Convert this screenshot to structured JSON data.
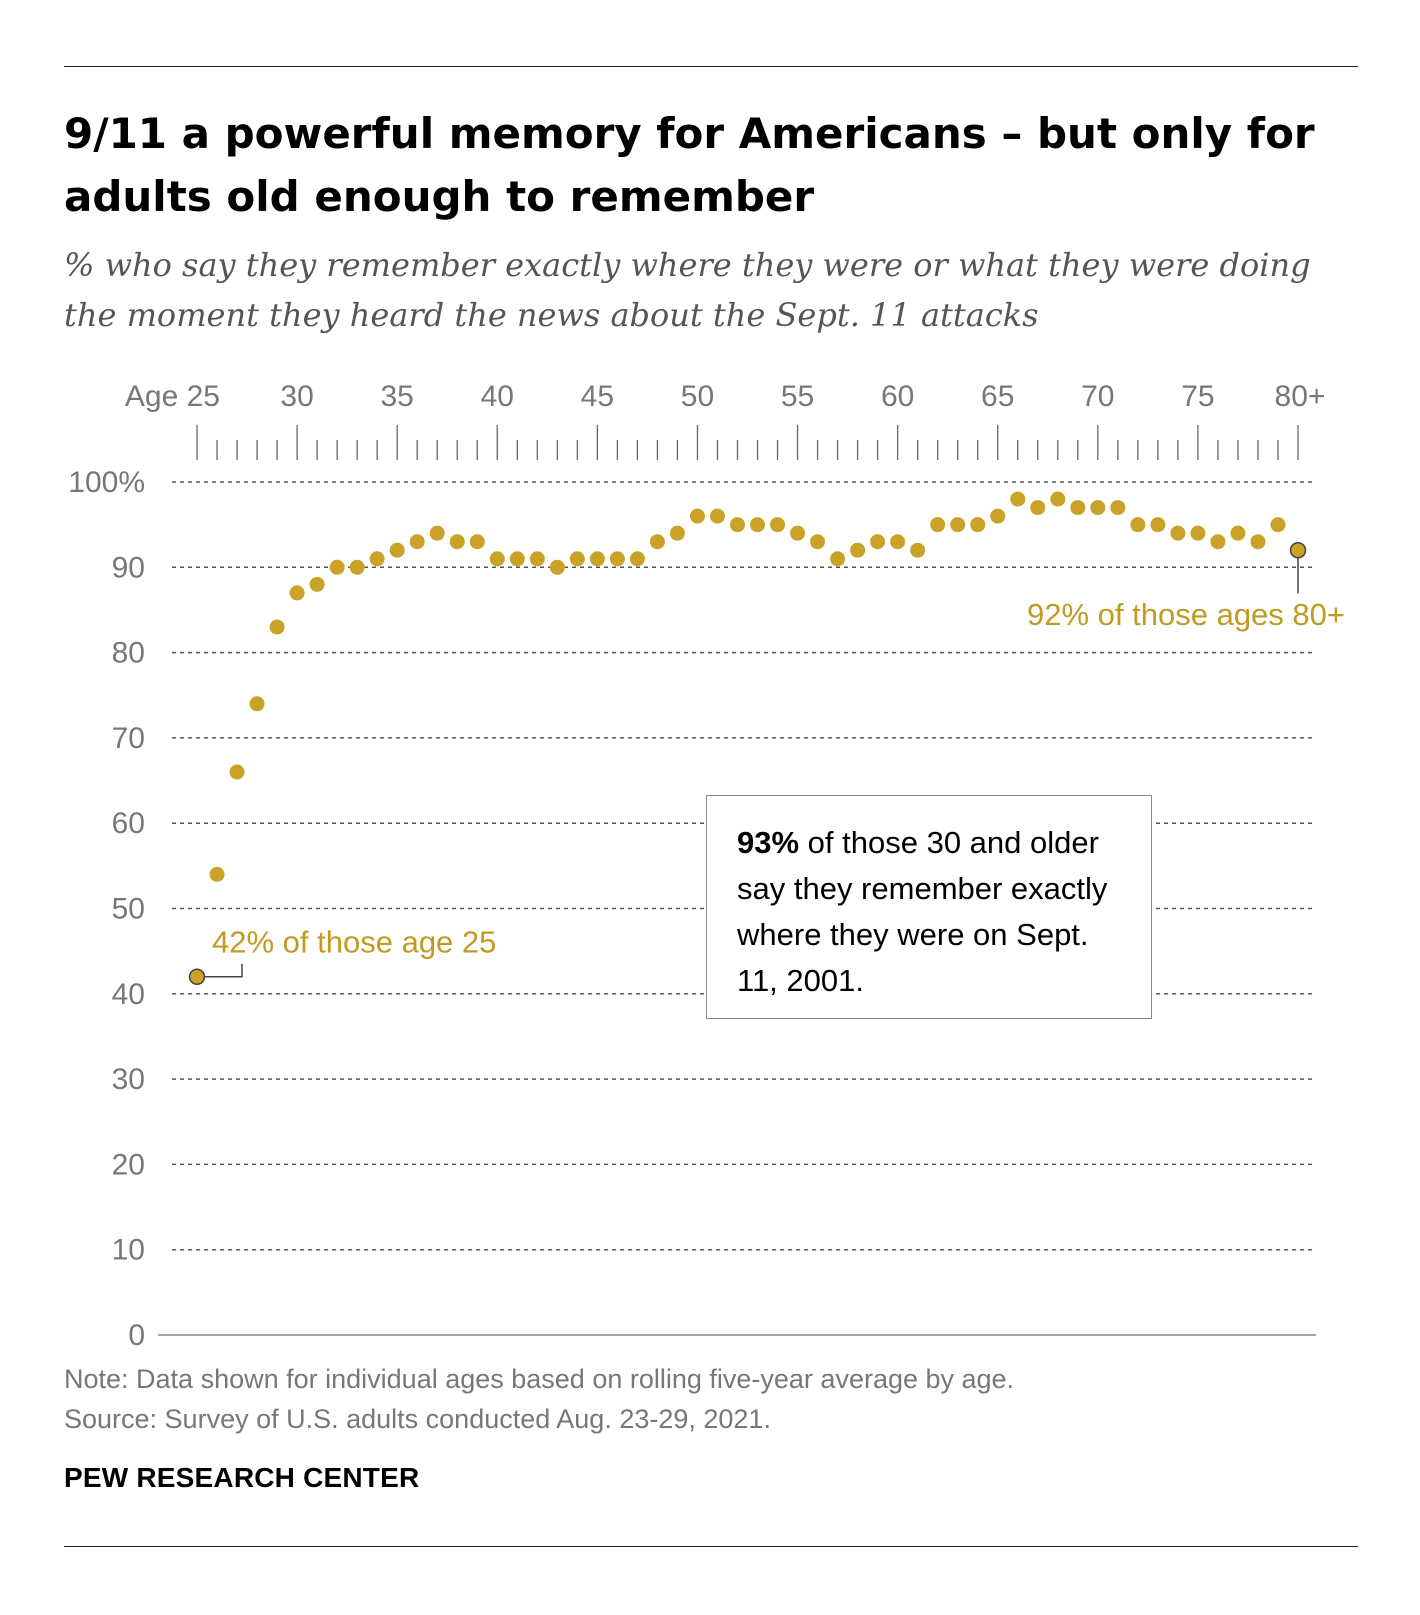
{
  "title": "9/11 a powerful memory for Americans – but only for adults old enough to remember",
  "subtitle": "% who say they remember exactly where they were or what they were doing the moment they heard the news about the Sept. 11 attacks",
  "callout": {
    "highlight": "93%",
    "text": " of those 30 and older say they remember exactly where they were on Sept. 11, 2001."
  },
  "note": "Note: Data shown for individual ages based on rolling five-year average by age.",
  "source": "Source: Survey of U.S. adults conducted Aug. 23-29, 2021.",
  "brand": "PEW RESEARCH CENTER",
  "colors": {
    "dot": "#C9A227",
    "label": "#C19A22",
    "axis_text": "#777777",
    "grid": "#555555"
  },
  "chart_data": {
    "type": "scatter",
    "title": "9/11 a powerful memory for Americans – but only for adults old enough to remember",
    "xlabel": "Age",
    "ylabel": "%",
    "x": [
      25,
      26,
      27,
      28,
      29,
      30,
      31,
      32,
      33,
      34,
      35,
      36,
      37,
      38,
      39,
      40,
      41,
      42,
      43,
      44,
      45,
      46,
      47,
      48,
      49,
      50,
      51,
      52,
      53,
      54,
      55,
      56,
      57,
      58,
      59,
      60,
      61,
      62,
      63,
      64,
      65,
      66,
      67,
      68,
      69,
      70,
      71,
      72,
      73,
      74,
      75,
      76,
      77,
      78,
      79,
      80
    ],
    "values": [
      42,
      54,
      66,
      74,
      83,
      87,
      88,
      90,
      90,
      91,
      92,
      93,
      94,
      93,
      93,
      91,
      91,
      91,
      90,
      91,
      91,
      91,
      91,
      93,
      94,
      96,
      96,
      95,
      95,
      95,
      94,
      93,
      91,
      92,
      93,
      93,
      92,
      95,
      95,
      95,
      96,
      98,
      97,
      98,
      97,
      97,
      97,
      95,
      95,
      94,
      94,
      93,
      94,
      93,
      95,
      92
    ],
    "xlim": [
      25,
      80
    ],
    "ylim": [
      0,
      100
    ],
    "x_ticks": [
      {
        "value": 25,
        "label": "Age 25"
      },
      {
        "value": 30,
        "label": "30"
      },
      {
        "value": 35,
        "label": "35"
      },
      {
        "value": 40,
        "label": "40"
      },
      {
        "value": 45,
        "label": "45"
      },
      {
        "value": 50,
        "label": "50"
      },
      {
        "value": 55,
        "label": "55"
      },
      {
        "value": 60,
        "label": "60"
      },
      {
        "value": 65,
        "label": "65"
      },
      {
        "value": 70,
        "label": "70"
      },
      {
        "value": 75,
        "label": "75"
      },
      {
        "value": 80,
        "label": "80+"
      }
    ],
    "y_ticks": [
      {
        "value": 0,
        "label": "0"
      },
      {
        "value": 10,
        "label": "10"
      },
      {
        "value": 20,
        "label": "20"
      },
      {
        "value": 30,
        "label": "30"
      },
      {
        "value": 40,
        "label": "40"
      },
      {
        "value": 50,
        "label": "50"
      },
      {
        "value": 60,
        "label": "60"
      },
      {
        "value": 70,
        "label": "70"
      },
      {
        "value": 80,
        "label": "80"
      },
      {
        "value": 90,
        "label": "90"
      },
      {
        "value": 100,
        "label": "100%"
      }
    ],
    "grid": true,
    "annotations": [
      {
        "x": 25,
        "y": 42,
        "text": "42% of those age 25"
      },
      {
        "x": 80,
        "y": 92,
        "text": "92% of those ages 80+"
      }
    ]
  }
}
